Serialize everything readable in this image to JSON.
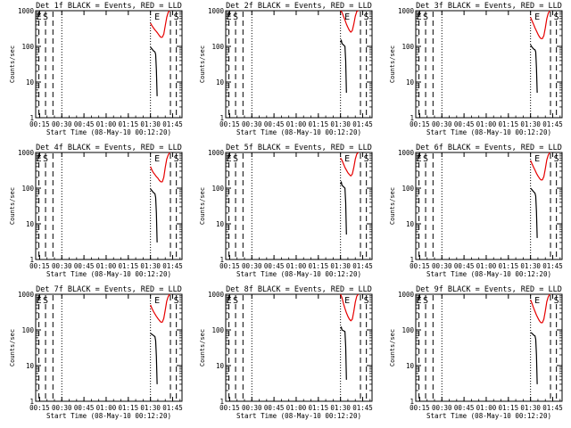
{
  "chart_data": [
    {
      "type": "line",
      "title": "Det 1f BLACK = Events, RED = LLD",
      "xlabel": "Start Time (08-May-10 00:12:20)",
      "ylabel": "Counts/sec",
      "xlim": [
        "00:12:20",
        "01:51:20"
      ],
      "ylim": [
        1,
        1000
      ],
      "y_scale": "log",
      "y_ticks": [
        "1",
        "10",
        "100",
        "1000"
      ],
      "x_ticks": [
        "00:15",
        "00:30",
        "00:45",
        "01:00",
        "01:15",
        "01:30",
        "01:45"
      ],
      "markers": [
        {
          "label": "E",
          "time": "00:14:30"
        },
        {
          "label": "S",
          "time": "00:19:00"
        },
        {
          "label": "E",
          "time": "01:34:30"
        },
        {
          "label": "S",
          "time": "01:47:30"
        }
      ],
      "dashed_lines": [
        "00:14:30",
        "00:19:00",
        "00:24:00",
        "01:43:30",
        "01:47:30"
      ],
      "dotted_lines": [
        "00:30:00",
        "01:30:00"
      ],
      "series": [
        {
          "name": "BLACK",
          "color": "#000000",
          "x": [
            "01:30:00",
            "01:31:00",
            "01:32:00",
            "01:33:00",
            "01:33:30",
            "01:34:00",
            "01:34:30"
          ],
          "y": [
            95,
            85,
            75,
            70,
            60,
            22,
            4
          ]
        },
        {
          "name": "RED",
          "color": "#e60000",
          "x": [
            "01:30:00",
            "01:31:00",
            "01:32:00",
            "01:33:00",
            "01:34:00",
            "01:35:00",
            "01:36:00",
            "01:37:00",
            "01:38:00",
            "01:39:00",
            "01:40:00",
            "01:41:00",
            "01:42:00",
            "01:43:00"
          ],
          "y": [
            450,
            380,
            330,
            290,
            260,
            230,
            200,
            180,
            180,
            220,
            380,
            650,
            900,
            1000
          ]
        }
      ]
    },
    {
      "type": "line",
      "title": "Det 2f BLACK = Events, RED = LLD",
      "xlabel": "Start Time (08-May-10 00:12:20)",
      "ylabel": "Counts/sec",
      "xlim": [
        "00:12:20",
        "01:51:20"
      ],
      "ylim": [
        1,
        1000
      ],
      "y_scale": "log",
      "y_ticks": [
        "1",
        "10",
        "100",
        "1000"
      ],
      "x_ticks": [
        "00:15",
        "00:30",
        "00:45",
        "01:00",
        "01:15",
        "01:30",
        "01:45"
      ],
      "markers": [
        {
          "label": "E",
          "time": "00:14:30"
        },
        {
          "label": "S",
          "time": "00:19:00"
        },
        {
          "label": "E",
          "time": "01:34:30"
        },
        {
          "label": "S",
          "time": "01:47:30"
        }
      ],
      "dashed_lines": [
        "00:14:30",
        "00:19:00",
        "00:24:00",
        "01:43:30",
        "01:47:30"
      ],
      "dotted_lines": [
        "00:30:00",
        "01:30:00"
      ],
      "series": [
        {
          "name": "BLACK",
          "color": "#000000",
          "x": [
            "01:30:00",
            "01:30:30",
            "01:31:00",
            "01:32:00",
            "01:33:00",
            "01:33:30",
            "01:34:00"
          ],
          "y": [
            130,
            150,
            120,
            110,
            100,
            40,
            5
          ]
        },
        {
          "name": "RED",
          "color": "#e60000",
          "x": [
            "01:30:00",
            "01:31:00",
            "01:32:00",
            "01:33:00",
            "01:34:00",
            "01:35:00",
            "01:36:00",
            "01:37:00",
            "01:38:00",
            "01:39:00",
            "01:40:00",
            "01:41:00",
            "01:42:00"
          ],
          "y": [
            1000,
            900,
            700,
            550,
            420,
            340,
            280,
            250,
            280,
            420,
            700,
            950,
            1000
          ]
        }
      ]
    },
    {
      "type": "line",
      "title": "Det 3f BLACK = Events, RED = LLD",
      "xlabel": "Start Time (08-May-10 00:12:20)",
      "ylabel": "Counts/sec",
      "xlim": [
        "00:12:20",
        "01:51:20"
      ],
      "ylim": [
        1,
        1000
      ],
      "y_scale": "log",
      "y_ticks": [
        "1",
        "10",
        "100",
        "1000"
      ],
      "x_ticks": [
        "00:15",
        "00:30",
        "00:45",
        "01:00",
        "01:15",
        "01:30",
        "01:45"
      ],
      "markers": [
        {
          "label": "E",
          "time": "00:14:30"
        },
        {
          "label": "S",
          "time": "00:19:00"
        },
        {
          "label": "E",
          "time": "01:34:30"
        },
        {
          "label": "S",
          "time": "01:47:30"
        }
      ],
      "dashed_lines": [
        "00:14:30",
        "00:19:00",
        "00:24:00",
        "01:43:30",
        "01:47:30"
      ],
      "dotted_lines": [
        "00:30:00",
        "01:30:00"
      ],
      "series": [
        {
          "name": "BLACK",
          "color": "#000000",
          "x": [
            "01:30:00",
            "01:31:00",
            "01:32:00",
            "01:33:00",
            "01:33:30",
            "01:34:00",
            "01:34:30"
          ],
          "y": [
            110,
            95,
            85,
            80,
            70,
            25,
            5
          ]
        },
        {
          "name": "RED",
          "color": "#e60000",
          "x": [
            "01:30:00",
            "01:31:00",
            "01:32:00",
            "01:33:00",
            "01:34:00",
            "01:35:00",
            "01:36:00",
            "01:37:00",
            "01:38:00",
            "01:39:00",
            "01:40:00",
            "01:41:00",
            "01:42:00",
            "01:43:00"
          ],
          "y": [
            650,
            520,
            420,
            330,
            270,
            220,
            185,
            165,
            165,
            200,
            330,
            600,
            850,
            1000
          ]
        }
      ]
    },
    {
      "type": "line",
      "title": "Det 4f BLACK = Events, RED = LLD",
      "xlabel": "Start Time (08-May-10 00:12:20)",
      "ylabel": "Counts/sec",
      "xlim": [
        "00:12:20",
        "01:51:20"
      ],
      "ylim": [
        1,
        1000
      ],
      "y_scale": "log",
      "y_ticks": [
        "1",
        "10",
        "100",
        "1000"
      ],
      "x_ticks": [
        "00:15",
        "00:30",
        "00:45",
        "01:00",
        "01:15",
        "01:30",
        "01:45"
      ],
      "markers": [
        {
          "label": "E",
          "time": "00:14:30"
        },
        {
          "label": "S",
          "time": "00:19:00"
        },
        {
          "label": "E",
          "time": "01:34:30"
        },
        {
          "label": "S",
          "time": "01:47:30"
        }
      ],
      "dashed_lines": [
        "00:14:30",
        "00:19:00",
        "00:24:00",
        "01:43:30",
        "01:47:30"
      ],
      "dotted_lines": [
        "00:30:00",
        "01:30:00"
      ],
      "series": [
        {
          "name": "BLACK",
          "color": "#000000",
          "x": [
            "01:30:00",
            "01:31:00",
            "01:32:00",
            "01:33:00",
            "01:33:30",
            "01:34:00",
            "01:34:30"
          ],
          "y": [
            95,
            85,
            75,
            70,
            55,
            20,
            3
          ]
        },
        {
          "name": "RED",
          "color": "#e60000",
          "x": [
            "01:30:00",
            "01:31:00",
            "01:32:00",
            "01:33:00",
            "01:34:00",
            "01:35:00",
            "01:36:00",
            "01:37:00",
            "01:38:00",
            "01:39:00",
            "01:40:00",
            "01:41:00",
            "01:42:00",
            "01:43:00"
          ],
          "y": [
            400,
            320,
            270,
            240,
            210,
            190,
            165,
            150,
            150,
            200,
            380,
            650,
            850,
            1000
          ]
        }
      ]
    },
    {
      "type": "line",
      "title": "Det 5f BLACK = Events, RED = LLD",
      "xlabel": "Start Time (08-May-10 00:12:20)",
      "ylabel": "Counts/sec",
      "xlim": [
        "00:12:20",
        "01:51:20"
      ],
      "ylim": [
        1,
        1000
      ],
      "y_scale": "log",
      "y_ticks": [
        "1",
        "10",
        "100",
        "1000"
      ],
      "x_ticks": [
        "00:15",
        "00:30",
        "00:45",
        "01:00",
        "01:15",
        "01:30",
        "01:45"
      ],
      "markers": [
        {
          "label": "E",
          "time": "00:14:30"
        },
        {
          "label": "S",
          "time": "00:19:00"
        },
        {
          "label": "E",
          "time": "01:34:30"
        },
        {
          "label": "S",
          "time": "01:47:30"
        }
      ],
      "dashed_lines": [
        "00:14:30",
        "00:19:00",
        "00:24:00",
        "01:43:30",
        "01:47:30"
      ],
      "dotted_lines": [
        "00:30:00",
        "01:30:00"
      ],
      "series": [
        {
          "name": "BLACK",
          "color": "#000000",
          "x": [
            "01:30:00",
            "01:30:30",
            "01:31:00",
            "01:32:00",
            "01:33:00",
            "01:33:30",
            "01:34:00"
          ],
          "y": [
            130,
            150,
            120,
            110,
            100,
            40,
            5
          ]
        },
        {
          "name": "RED",
          "color": "#e60000",
          "x": [
            "01:30:00",
            "01:31:00",
            "01:32:00",
            "01:33:00",
            "01:34:00",
            "01:35:00",
            "01:36:00",
            "01:37:00",
            "01:38:00",
            "01:39:00",
            "01:40:00",
            "01:41:00",
            "01:42:00"
          ],
          "y": [
            700,
            600,
            480,
            380,
            320,
            270,
            240,
            220,
            250,
            380,
            650,
            900,
            1000
          ]
        }
      ]
    },
    {
      "type": "line",
      "title": "Det 6f BLACK = Events, RED = LLD",
      "xlabel": "Start Time (08-May-10 00:12:20)",
      "ylabel": "Counts/sec",
      "xlim": [
        "00:12:20",
        "01:51:20"
      ],
      "ylim": [
        1,
        1000
      ],
      "y_scale": "log",
      "y_ticks": [
        "1",
        "10",
        "100",
        "1000"
      ],
      "x_ticks": [
        "00:15",
        "00:30",
        "00:45",
        "01:00",
        "01:15",
        "01:30",
        "01:45"
      ],
      "markers": [
        {
          "label": "E",
          "time": "00:14:30"
        },
        {
          "label": "S",
          "time": "00:19:00"
        },
        {
          "label": "E",
          "time": "01:34:30"
        },
        {
          "label": "S",
          "time": "01:47:30"
        }
      ],
      "dashed_lines": [
        "00:14:30",
        "00:19:00",
        "00:24:00",
        "01:43:30",
        "01:47:30"
      ],
      "dotted_lines": [
        "00:30:00",
        "01:30:00"
      ],
      "series": [
        {
          "name": "BLACK",
          "color": "#000000",
          "x": [
            "01:30:00",
            "01:31:00",
            "01:32:00",
            "01:33:00",
            "01:33:30",
            "01:34:00",
            "01:34:30"
          ],
          "y": [
            100,
            90,
            80,
            72,
            60,
            22,
            4
          ]
        },
        {
          "name": "RED",
          "color": "#e60000",
          "x": [
            "01:30:00",
            "01:31:00",
            "01:32:00",
            "01:33:00",
            "01:34:00",
            "01:35:00",
            "01:36:00",
            "01:37:00",
            "01:38:00",
            "01:39:00",
            "01:40:00",
            "01:41:00",
            "01:42:00",
            "01:43:00"
          ],
          "y": [
            600,
            480,
            390,
            320,
            260,
            220,
            190,
            170,
            170,
            210,
            350,
            620,
            850,
            1000
          ]
        }
      ]
    },
    {
      "type": "line",
      "title": "Det 7f BLACK = Events, RED = LLD",
      "xlabel": "Start Time (08-May-10 00:12:20)",
      "ylabel": "Counts/sec",
      "xlim": [
        "00:12:20",
        "01:51:20"
      ],
      "ylim": [
        1,
        1000
      ],
      "y_scale": "log",
      "y_ticks": [
        "1",
        "10",
        "100",
        "1000"
      ],
      "x_ticks": [
        "00:15",
        "00:30",
        "00:45",
        "01:00",
        "01:15",
        "01:30",
        "01:45"
      ],
      "markers": [
        {
          "label": "E",
          "time": "00:14:30"
        },
        {
          "label": "S",
          "time": "00:19:00"
        },
        {
          "label": "E",
          "time": "01:34:30"
        },
        {
          "label": "S",
          "time": "01:47:30"
        }
      ],
      "dashed_lines": [
        "00:14:30",
        "00:19:00",
        "00:24:00",
        "01:43:30",
        "01:47:30"
      ],
      "dotted_lines": [
        "00:30:00",
        "01:30:00"
      ],
      "series": [
        {
          "name": "BLACK",
          "color": "#000000",
          "x": [
            "01:30:00",
            "01:31:00",
            "01:32:00",
            "01:33:00",
            "01:33:30",
            "01:34:00",
            "01:34:30"
          ],
          "y": [
            80,
            75,
            70,
            65,
            50,
            18,
            3
          ]
        },
        {
          "name": "RED",
          "color": "#e60000",
          "x": [
            "01:30:00",
            "01:31:00",
            "01:32:00",
            "01:33:00",
            "01:34:00",
            "01:35:00",
            "01:36:00",
            "01:37:00",
            "01:38:00",
            "01:39:00",
            "01:40:00",
            "01:41:00",
            "01:42:00",
            "01:43:00"
          ],
          "y": [
            500,
            400,
            330,
            280,
            240,
            210,
            185,
            165,
            165,
            210,
            360,
            640,
            860,
            1000
          ]
        }
      ]
    },
    {
      "type": "line",
      "title": "Det 8f BLACK = Events, RED = LLD",
      "xlabel": "Start Time (08-May-10 00:12:20)",
      "ylabel": "Counts/sec",
      "xlim": [
        "00:12:20",
        "01:51:20"
      ],
      "ylim": [
        1,
        1000
      ],
      "y_scale": "log",
      "y_ticks": [
        "1",
        "10",
        "100",
        "1000"
      ],
      "x_ticks": [
        "00:15",
        "00:30",
        "00:45",
        "01:00",
        "01:15",
        "01:30",
        "01:45"
      ],
      "markers": [
        {
          "label": "E",
          "time": "00:14:30"
        },
        {
          "label": "S",
          "time": "00:19:00"
        },
        {
          "label": "E",
          "time": "01:34:30"
        },
        {
          "label": "S",
          "time": "01:47:30"
        }
      ],
      "dashed_lines": [
        "00:14:30",
        "00:19:00",
        "00:24:00",
        "01:43:30",
        "01:47:30"
      ],
      "dotted_lines": [
        "00:30:00",
        "01:30:00"
      ],
      "series": [
        {
          "name": "BLACK",
          "color": "#000000",
          "x": [
            "01:30:00",
            "01:30:30",
            "01:31:00",
            "01:32:00",
            "01:33:00",
            "01:33:30",
            "01:34:00"
          ],
          "y": [
            110,
            120,
            100,
            95,
            90,
            35,
            4
          ]
        },
        {
          "name": "RED",
          "color": "#e60000",
          "x": [
            "01:30:00",
            "01:31:00",
            "01:32:00",
            "01:33:00",
            "01:34:00",
            "01:35:00",
            "01:36:00",
            "01:37:00",
            "01:38:00",
            "01:39:00",
            "01:40:00",
            "01:41:00",
            "01:42:00"
          ],
          "y": [
            1000,
            800,
            550,
            400,
            300,
            240,
            200,
            180,
            200,
            330,
            600,
            880,
            1000
          ]
        }
      ]
    },
    {
      "type": "line",
      "title": "Det 9f BLACK = Events, RED = LLD",
      "xlabel": "Start Time (08-May-10 00:12:20)",
      "ylabel": "Counts/sec",
      "xlim": [
        "00:12:20",
        "01:51:20"
      ],
      "ylim": [
        1,
        1000
      ],
      "y_scale": "log",
      "y_ticks": [
        "1",
        "10",
        "100",
        "1000"
      ],
      "x_ticks": [
        "00:15",
        "00:30",
        "00:45",
        "01:00",
        "01:15",
        "01:30",
        "01:45"
      ],
      "markers": [
        {
          "label": "E",
          "time": "00:14:30"
        },
        {
          "label": "S",
          "time": "00:19:00"
        },
        {
          "label": "E",
          "time": "01:34:30"
        },
        {
          "label": "S",
          "time": "01:47:30"
        }
      ],
      "dashed_lines": [
        "00:14:30",
        "00:19:00",
        "00:24:00",
        "01:43:30",
        "01:47:30"
      ],
      "dotted_lines": [
        "00:30:00",
        "01:30:00"
      ],
      "series": [
        {
          "name": "BLACK",
          "color": "#000000",
          "x": [
            "01:30:00",
            "01:31:00",
            "01:32:00",
            "01:33:00",
            "01:33:30",
            "01:34:00",
            "01:34:30"
          ],
          "y": [
            85,
            80,
            72,
            68,
            55,
            20,
            3
          ]
        },
        {
          "name": "RED",
          "color": "#e60000",
          "x": [
            "01:30:00",
            "01:31:00",
            "01:32:00",
            "01:33:00",
            "01:34:00",
            "01:35:00",
            "01:36:00",
            "01:37:00",
            "01:38:00",
            "01:39:00",
            "01:40:00",
            "01:41:00",
            "01:42:00",
            "01:43:00"
          ],
          "y": [
            700,
            550,
            420,
            330,
            260,
            215,
            180,
            160,
            160,
            200,
            340,
            620,
            850,
            1000
          ]
        }
      ]
    }
  ]
}
